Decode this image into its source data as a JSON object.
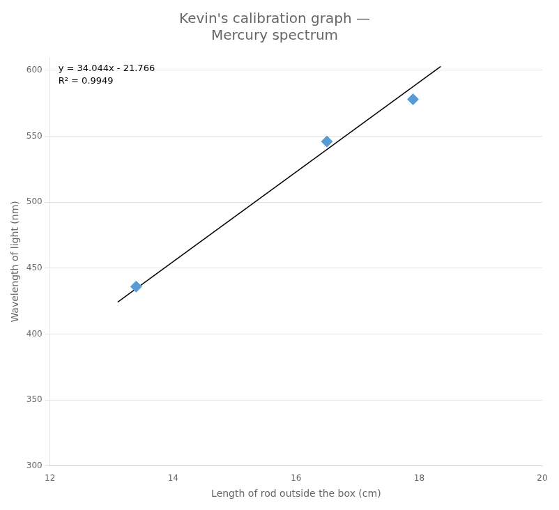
{
  "chart_data": {
    "type": "scatter",
    "title": "Kevin's calibration graph —\nMercury spectrum",
    "xlabel": "Length of rod outside the box (cm)",
    "ylabel": "Wavelength of light (nm)",
    "series": [
      {
        "type": "scatter",
        "marker": "diamond",
        "color": "#5B9BD5",
        "x": [
          13.4,
          16.5,
          17.9
        ],
        "values": [
          436,
          546,
          578
        ]
      },
      {
        "type": "line",
        "line_style": "solid",
        "color": "#000000",
        "x": [
          13.1,
          18.35
        ],
        "values": [
          424.2104,
          602.9414
        ]
      }
    ],
    "annotations": [
      "y = 34.044x - 21.766\nR² = 0.9949"
    ],
    "xlim": [
      12,
      20
    ],
    "ylim": [
      300,
      610
    ],
    "xticks": [
      12,
      14,
      16,
      18,
      20
    ],
    "yticks": [
      300,
      350,
      400,
      450,
      500,
      550,
      600
    ],
    "grid": "y"
  }
}
